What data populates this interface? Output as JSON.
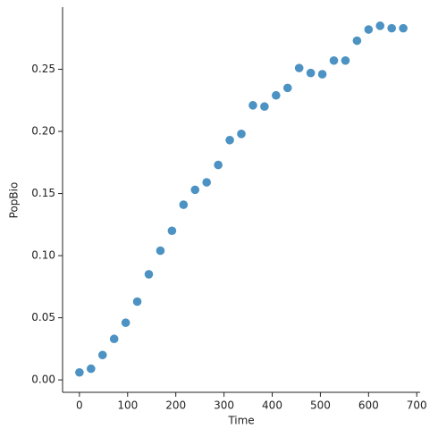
{
  "chart_data": {
    "type": "scatter",
    "x_label": "Time",
    "y_label": "PopBio",
    "x": [
      0,
      24,
      48,
      72,
      96,
      120,
      144,
      168,
      192,
      216,
      240,
      264,
      288,
      312,
      336,
      360,
      384,
      408,
      432,
      456,
      480,
      504,
      528,
      552,
      576,
      600,
      624,
      648,
      672
    ],
    "values": [
      0.006,
      0.009,
      0.02,
      0.033,
      0.046,
      0.063,
      0.085,
      0.104,
      0.12,
      0.141,
      0.153,
      0.159,
      0.173,
      0.193,
      0.198,
      0.221,
      0.22,
      0.229,
      0.235,
      0.251,
      0.247,
      0.246,
      0.257,
      0.257,
      0.273,
      0.282,
      0.285,
      0.283,
      0.283
    ],
    "color": "#1f77b4",
    "xlim": [
      -35,
      707
    ],
    "ylim": [
      -0.01,
      0.3
    ],
    "xticks": [
      0,
      100,
      200,
      300,
      400,
      500,
      600,
      700
    ],
    "yticks": [
      {
        "value": 0,
        "label": "0.00"
      },
      {
        "value": 0.05,
        "label": "0.05"
      },
      {
        "value": 0.1,
        "label": "0.10"
      },
      {
        "value": 0.15,
        "label": "0.15"
      },
      {
        "value": 0.2,
        "label": "0.20"
      },
      {
        "value": 0.25,
        "label": "0.25"
      }
    ]
  }
}
